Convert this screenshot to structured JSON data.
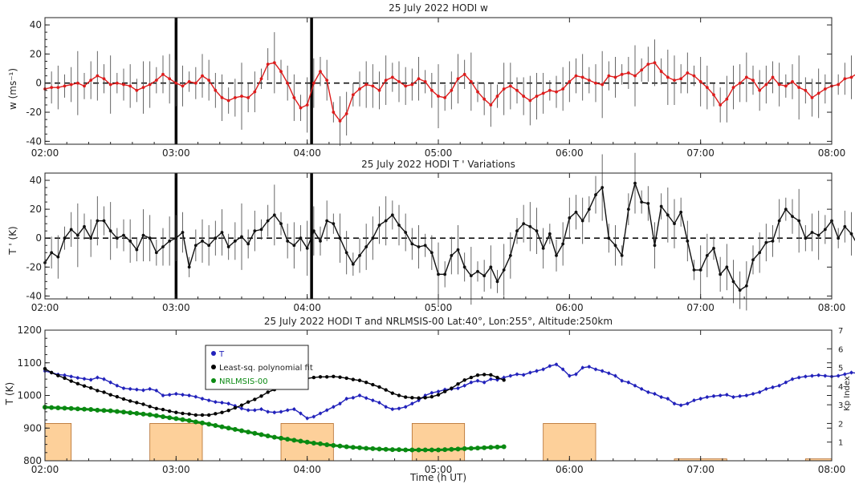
{
  "chart_data": [
    {
      "type": "line",
      "title": "25 July 2022 HODI w",
      "xlabel": "",
      "ylabel": "w (ms⁻¹)",
      "xlim": [
        "02:00",
        "08:00"
      ],
      "ylim": [
        -42,
        45
      ],
      "yticks": [
        -40,
        -20,
        0,
        20,
        40
      ],
      "xtick_labels": [
        "02:00",
        "03:00",
        "04:00",
        "05:00",
        "06:00",
        "07:00",
        "08:00"
      ],
      "vertical_markers": [
        "03:00",
        "04:02"
      ],
      "zero_line": "dashed",
      "error_bars": true,
      "series": [
        {
          "color": "#dd1c1c",
          "x_start": "02:00",
          "x_step_minutes": 3,
          "values": [
            -4,
            -3,
            -3,
            -2,
            -1,
            0,
            -2,
            2,
            5,
            3,
            -1,
            0,
            -1,
            -2,
            -5,
            -3,
            -1,
            2,
            6,
            3,
            0,
            -2,
            1,
            0,
            5,
            2,
            -5,
            -10,
            -12,
            -10,
            -9,
            -10,
            -6,
            3,
            13,
            14,
            8,
            0,
            -10,
            -17,
            -15,
            0,
            8,
            2,
            -20,
            -26,
            -21,
            -8,
            -4,
            -1,
            -2,
            -5,
            2,
            4,
            1,
            -2,
            -1,
            3,
            1,
            -5,
            -9,
            -10,
            -5,
            3,
            6,
            1,
            -6,
            -11,
            -15,
            -9,
            -4,
            -2,
            -5,
            -9,
            -12,
            -9,
            -7,
            -5,
            -6,
            -4,
            1,
            5,
            4,
            2,
            0,
            -1,
            5,
            4,
            6,
            7,
            5,
            9,
            13,
            14,
            8,
            4,
            2,
            3,
            7,
            5,
            1,
            -3,
            -8,
            -15,
            -11,
            -3,
            0,
            4,
            2,
            -5,
            -1,
            4,
            -1,
            -2,
            1,
            -3,
            -5,
            -10,
            -7,
            -4,
            -2,
            -1,
            3,
            4,
            7,
            10,
            14,
            15,
            9,
            1,
            5,
            1,
            0
          ]
        }
      ]
    },
    {
      "type": "line",
      "title": "25 July 2022 HODI T ' Variations",
      "xlabel": "",
      "ylabel": "T ' (K)",
      "xlim": [
        "02:00",
        "08:00"
      ],
      "ylim": [
        -42,
        45
      ],
      "yticks": [
        -40,
        -20,
        0,
        20,
        40
      ],
      "xtick_labels": [
        "02:00",
        "03:00",
        "04:00",
        "05:00",
        "06:00",
        "07:00",
        "08:00"
      ],
      "vertical_markers": [
        "03:00",
        "04:02"
      ],
      "zero_line": "dashed",
      "error_bars": true,
      "series": [
        {
          "color": "#111111",
          "x_start": "02:00",
          "x_step_minutes": 3,
          "values": [
            -17,
            -10,
            -13,
            0,
            6,
            2,
            8,
            0,
            12,
            12,
            5,
            0,
            2,
            -2,
            -8,
            2,
            0,
            -10,
            -6,
            -2,
            0,
            4,
            -20,
            -5,
            -2,
            -5,
            0,
            4,
            -6,
            -2,
            1,
            -4,
            5,
            6,
            12,
            16,
            10,
            -2,
            -5,
            0,
            -7,
            5,
            -2,
            12,
            10,
            0,
            -10,
            -18,
            -12,
            -6,
            0,
            9,
            12,
            16,
            9,
            4,
            -4,
            -6,
            -5,
            -10,
            -25,
            -25,
            -12,
            -8,
            -20,
            -26,
            -23,
            -26,
            -20,
            -30,
            -22,
            -12,
            5,
            10,
            8,
            5,
            -7,
            3,
            -12,
            -4,
            14,
            18,
            12,
            20,
            30,
            35,
            0,
            -5,
            -12,
            20,
            38,
            25,
            24,
            -5,
            22,
            16,
            10,
            18,
            -2,
            -22,
            -22,
            -12,
            -7,
            -25,
            -20,
            -30,
            -36,
            -33,
            -15,
            -10,
            -3,
            -2,
            12,
            20,
            15,
            12,
            0,
            4,
            2,
            6,
            12,
            0,
            8,
            3,
            -5,
            12,
            4,
            -2,
            -10,
            -20,
            -16,
            -8,
            -12,
            -22,
            -18,
            -25,
            -5,
            5,
            20,
            23
          ]
        }
      ]
    },
    {
      "type": "line",
      "title": "25 July 2022 HODI T and NRLMSIS-00 Lat:40°, Lon:255°, Altitude:250km",
      "xlabel": "Time (h UT)",
      "ylabel": "T (K)",
      "y2label": "Kp Index",
      "xlim": [
        "02:00",
        "08:00"
      ],
      "ylim": [
        800,
        1200
      ],
      "y2lim": [
        0,
        7
      ],
      "yticks": [
        800,
        900,
        1000,
        1100,
        1200
      ],
      "y2ticks": [
        1,
        2,
        3,
        4,
        5,
        6,
        7
      ],
      "xtick_labels": [
        "02:00",
        "03:00",
        "04:00",
        "05:00",
        "06:00",
        "07:00",
        "08:00"
      ],
      "legend_position": "upper-left",
      "series": [
        {
          "name": "T",
          "color": "#2222bb",
          "x_start": "02:00",
          "x_step_minutes": 3,
          "values": [
            1075,
            1070,
            1064,
            1062,
            1058,
            1054,
            1051,
            1048,
            1055,
            1050,
            1040,
            1030,
            1022,
            1020,
            1018,
            1016,
            1020,
            1015,
            1000,
            1002,
            1005,
            1002,
            1000,
            996,
            990,
            985,
            980,
            978,
            975,
            968,
            960,
            955,
            955,
            958,
            950,
            948,
            950,
            955,
            958,
            945,
            930,
            935,
            945,
            955,
            965,
            975,
            990,
            993,
            1000,
            992,
            985,
            978,
            965,
            958,
            960,
            965,
            975,
            985,
            1000,
            1008,
            1012,
            1018,
            1020,
            1022,
            1030,
            1040,
            1045,
            1040,
            1050,
            1048,
            1055,
            1060,
            1065,
            1063,
            1070,
            1075,
            1080,
            1090,
            1095,
            1080,
            1060,
            1065,
            1085,
            1088,
            1080,
            1075,
            1068,
            1060,
            1045,
            1040,
            1030,
            1020,
            1010,
            1005,
            995,
            990,
            975,
            970,
            975,
            985,
            990,
            995,
            998,
            1000,
            1002,
            995,
            998,
            1000,
            1005,
            1010,
            1020,
            1025,
            1030,
            1040,
            1050,
            1055,
            1058,
            1060,
            1062,
            1060,
            1058,
            1060,
            1065,
            1070,
            1068
          ]
        },
        {
          "name": "Least-sq. polynomial fit",
          "color": "#000000",
          "x_start": "02:00",
          "x_step_minutes": 3,
          "values": [
            1082,
            1070,
            1061,
            1053,
            1044,
            1036,
            1029,
            1023,
            1015,
            1010,
            1002,
            996,
            989,
            983,
            978,
            973,
            966,
            960,
            957,
            952,
            948,
            945,
            943,
            940,
            940,
            940,
            944,
            948,
            954,
            962,
            970,
            980,
            988,
            998,
            1010,
            1018,
            1028,
            1035,
            1043,
            1048,
            1052,
            1055,
            1057,
            1057,
            1058,
            1056,
            1053,
            1049,
            1046,
            1040,
            1033,
            1026,
            1017,
            1007,
            1000,
            995,
            993,
            992,
            993,
            996,
            1002,
            1012,
            1022,
            1035,
            1047,
            1055,
            1062,
            1064,
            1063,
            1055,
            1047
          ]
        },
        {
          "name": "NRLMSIS-00",
          "color": "#0a8a12",
          "x_start": "02:00",
          "x_step_minutes": 3,
          "values": [
            964,
            963,
            962,
            961,
            960,
            959,
            958,
            957,
            955,
            954,
            953,
            951,
            949,
            947,
            945,
            943,
            941,
            938,
            935,
            932,
            929,
            926,
            923,
            919,
            916,
            912,
            908,
            904,
            900,
            896,
            892,
            888,
            884,
            880,
            876,
            872,
            869,
            866,
            863,
            860,
            857,
            854,
            852,
            849,
            847,
            845,
            843,
            841,
            840,
            838,
            837,
            836,
            835,
            834,
            834,
            833,
            833,
            833,
            833,
            833,
            833,
            834,
            835,
            836,
            837,
            838,
            839,
            840,
            841,
            842,
            843
          ]
        }
      ],
      "kp_bars": [
        {
          "start": "02:00",
          "end": "02:12",
          "kp": 2
        },
        {
          "start": "02:48",
          "end": "03:12",
          "kp": 2
        },
        {
          "start": "03:48",
          "end": "04:12",
          "kp": 2
        },
        {
          "start": "04:48",
          "end": "05:12",
          "kp": 2
        },
        {
          "start": "05:48",
          "end": "06:12",
          "kp": 2
        },
        {
          "start": "06:48",
          "end": "07:12",
          "kp": 0.1
        },
        {
          "start": "07:48",
          "end": "08:00",
          "kp": 0.1
        }
      ],
      "kp_bar_color": "#fdd09a"
    }
  ],
  "legend": [
    "T",
    "Least-sq. polynomial fit",
    "NRLMSIS-00"
  ]
}
